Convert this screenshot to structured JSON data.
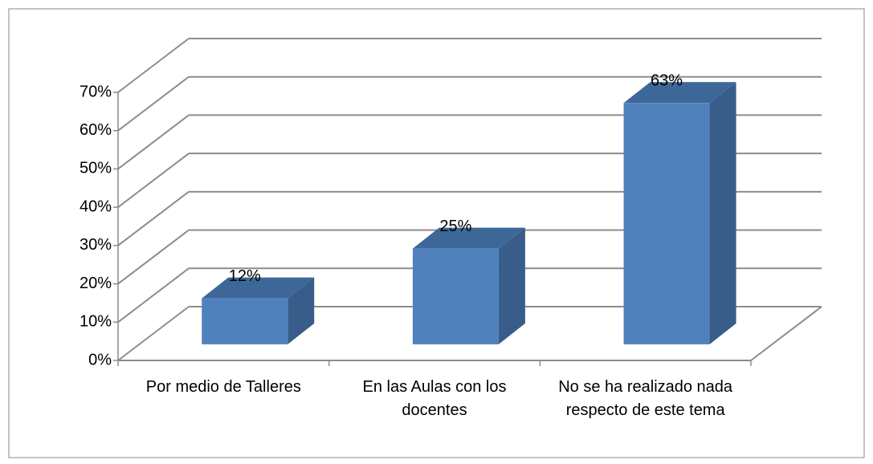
{
  "chart_data": {
    "type": "bar3d",
    "categories": [
      "Por medio de Talleres",
      "En las Aulas con los docentes",
      "No se ha realizado nada respecto de este tema"
    ],
    "values": [
      12,
      25,
      63
    ],
    "value_labels": [
      "12%",
      "25%",
      "63%"
    ],
    "color": "#4f81bd",
    "ylim": [
      0,
      70
    ],
    "yticks": [
      {
        "value": 0,
        "label": "0%"
      },
      {
        "value": 10,
        "label": "10%"
      },
      {
        "value": 20,
        "label": "20%"
      },
      {
        "value": 30,
        "label": "30%"
      },
      {
        "value": 40,
        "label": "40%"
      },
      {
        "value": 50,
        "label": "50%"
      },
      {
        "value": 60,
        "label": "60%"
      },
      {
        "value": 70,
        "label": "70%"
      }
    ],
    "grid": true
  }
}
